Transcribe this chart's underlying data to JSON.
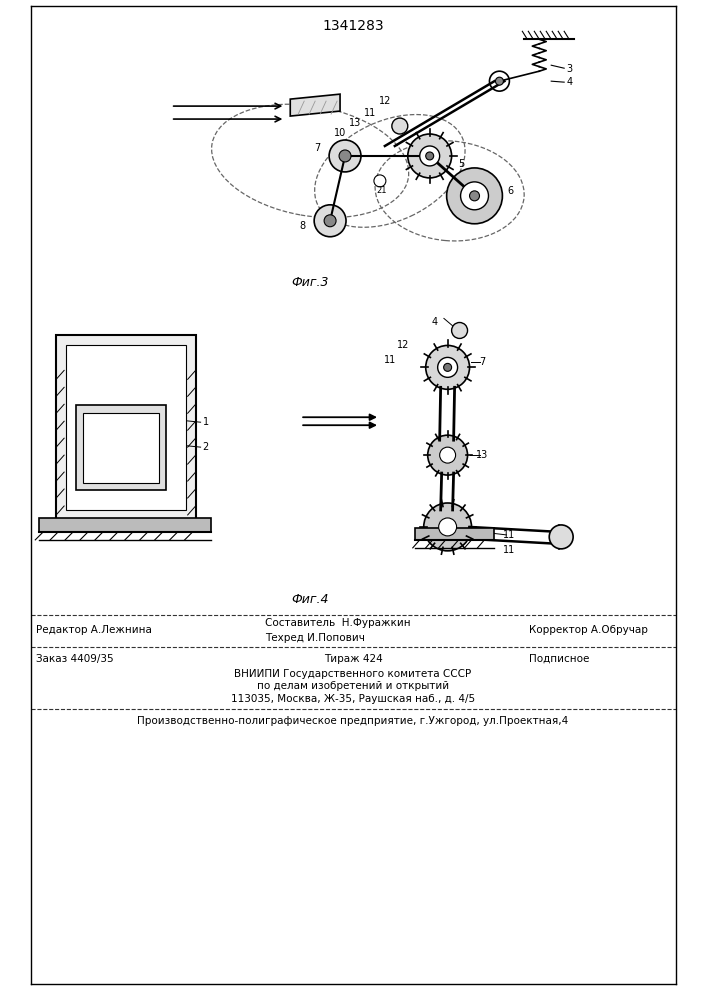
{
  "patent_number": "1341283",
  "bg_color": "#ffffff",
  "fig3_label": "Фиг.3",
  "fig4_label": "Фиг.4",
  "text_color": "#000000",
  "line_color": "#000000",
  "editor": "Редактор А.Лежнина",
  "composer": "Составитель  Н.Фуражкин",
  "techred": "Техред И.Попович",
  "corrector": "Корректор А.Обручар",
  "order": "Заказ 4409/35",
  "tirazh": "Тираж 424",
  "podpisnoe": "Подписное",
  "vniipи1": "ВНИИПИ Государственного комитета СССР",
  "vniipи2": "по делам изобретений и открытий",
  "vniipи3": "113035, Москва, Ж-35, Раушская наб., д. 4/5",
  "producer": "Производственно-полиграфическое предприятие, г.Ужгород, ул.Проектная,4"
}
